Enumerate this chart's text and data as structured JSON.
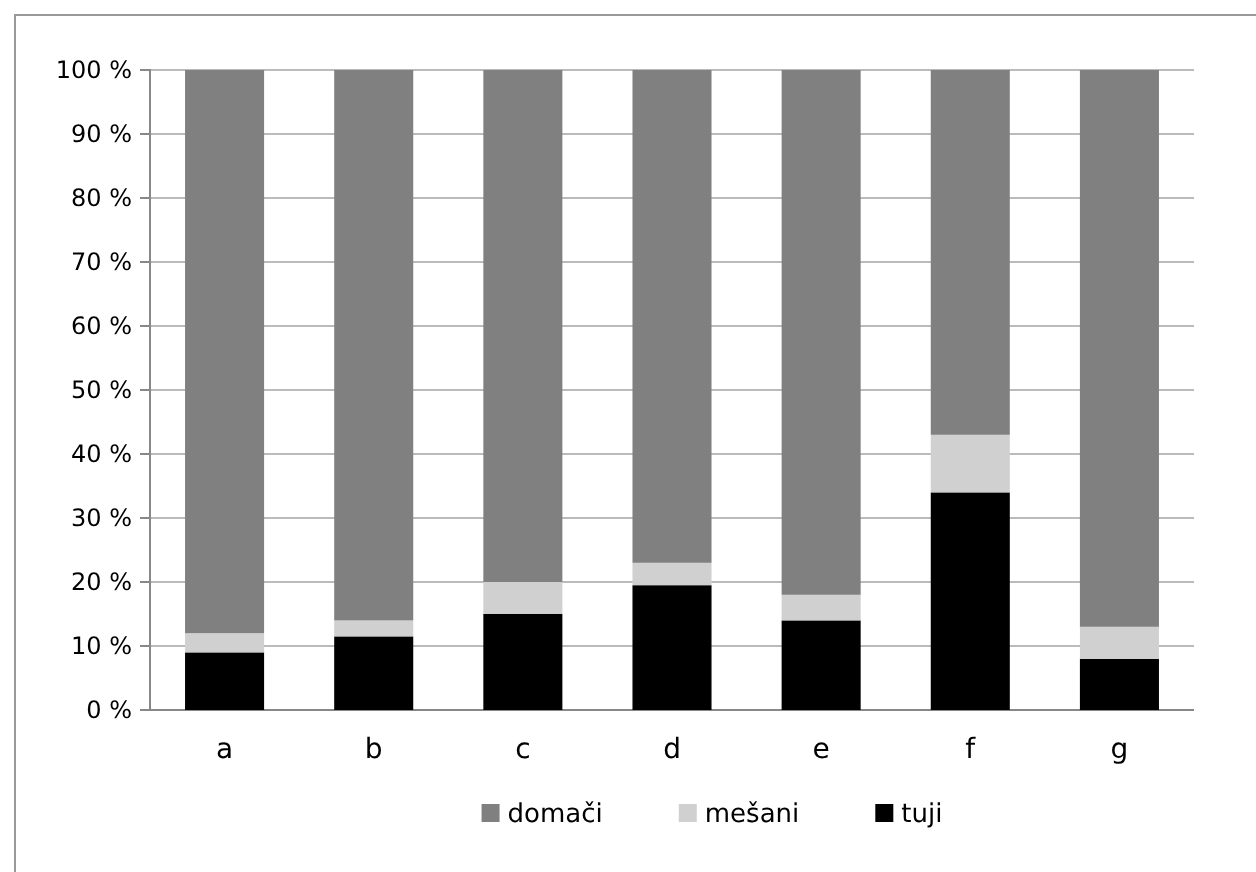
{
  "chart_data": {
    "type": "bar",
    "stacked": true,
    "categories": [
      "a",
      "b",
      "c",
      "d",
      "e",
      "f",
      "g"
    ],
    "series": [
      {
        "name": "tuji",
        "color": "#000000",
        "values": [
          9,
          11.5,
          15,
          19.5,
          14,
          34,
          8
        ]
      },
      {
        "name": "mešani",
        "color": "#d0d0d0",
        "values": [
          3,
          2.5,
          5,
          3.5,
          4,
          9,
          5
        ]
      },
      {
        "name": "domači",
        "color": "#808080",
        "values": [
          88,
          86,
          80,
          77,
          82,
          57,
          87
        ]
      }
    ],
    "ylim": [
      0,
      100
    ],
    "yticks": [
      {
        "value": 0,
        "label": "0 %"
      },
      {
        "value": 10,
        "label": "10 %"
      },
      {
        "value": 20,
        "label": "20 %"
      },
      {
        "value": 30,
        "label": "30 %"
      },
      {
        "value": 40,
        "label": "40 %"
      },
      {
        "value": 50,
        "label": "50 %"
      },
      {
        "value": 60,
        "label": "60 %"
      },
      {
        "value": 70,
        "label": "70 %"
      },
      {
        "value": 80,
        "label": "80 %"
      },
      {
        "value": 90,
        "label": "90 %"
      },
      {
        "value": 100,
        "label": "100 %"
      }
    ],
    "grid": "y",
    "legend": "bottom"
  }
}
